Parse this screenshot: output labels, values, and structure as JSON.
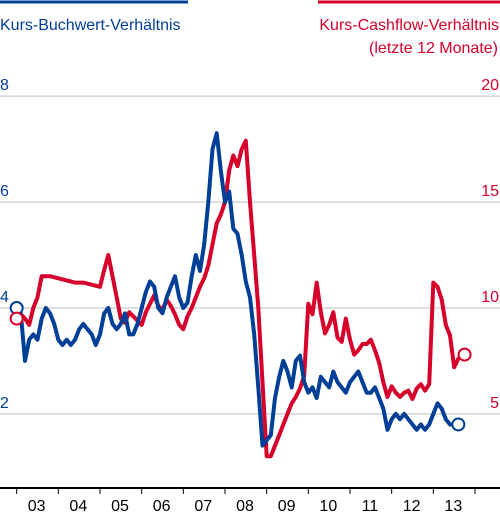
{
  "chart_data": {
    "type": "line",
    "legend": {
      "left_label": "Kurs-Buchwert-Verhältnis",
      "right_label_line1": "Kurs-Cashflow-Verhältnis",
      "right_label_line2": "(letzte 12 Monate)"
    },
    "colors": {
      "blue": "#003f98",
      "red": "#d6002a",
      "grid": "#bdbdbd",
      "axis": "#000000"
    },
    "x_ticks": [
      "03",
      "04",
      "05",
      "06",
      "07",
      "08",
      "09",
      "10",
      "11",
      "12",
      "13"
    ],
    "y_left_ticks": [
      "2",
      "4",
      "6",
      "8"
    ],
    "y_right_ticks": [
      "5",
      "10",
      "15",
      "20"
    ],
    "xlim": [
      2002.6,
      2014.6
    ],
    "y_left_lim": [
      0.6,
      8.4
    ],
    "y_right_lim": [
      1.5,
      21.0
    ],
    "series": [
      {
        "name": "Kurs-Buchwert-Verhältnis",
        "axis": "left",
        "color": "blue",
        "points": [
          [
            2003.0,
            4.0
          ],
          [
            2003.1,
            3.9
          ],
          [
            2003.2,
            3.0
          ],
          [
            2003.3,
            3.4
          ],
          [
            2003.4,
            3.5
          ],
          [
            2003.5,
            3.4
          ],
          [
            2003.6,
            3.8
          ],
          [
            2003.7,
            4.0
          ],
          [
            2003.8,
            3.9
          ],
          [
            2003.9,
            3.7
          ],
          [
            2004.0,
            3.4
          ],
          [
            2004.1,
            3.3
          ],
          [
            2004.2,
            3.4
          ],
          [
            2004.3,
            3.3
          ],
          [
            2004.4,
            3.4
          ],
          [
            2004.5,
            3.6
          ],
          [
            2004.6,
            3.7
          ],
          [
            2004.7,
            3.6
          ],
          [
            2004.8,
            3.5
          ],
          [
            2004.9,
            3.3
          ],
          [
            2005.0,
            3.5
          ],
          [
            2005.1,
            3.9
          ],
          [
            2005.2,
            4.0
          ],
          [
            2005.3,
            3.7
          ],
          [
            2005.4,
            3.6
          ],
          [
            2005.5,
            3.7
          ],
          [
            2005.6,
            3.9
          ],
          [
            2005.7,
            3.5
          ],
          [
            2005.8,
            3.5
          ],
          [
            2005.9,
            3.7
          ],
          [
            2006.0,
            4.0
          ],
          [
            2006.1,
            4.3
          ],
          [
            2006.2,
            4.5
          ],
          [
            2006.3,
            4.4
          ],
          [
            2006.4,
            4.0
          ],
          [
            2006.5,
            3.9
          ],
          [
            2006.6,
            4.2
          ],
          [
            2006.7,
            4.4
          ],
          [
            2006.8,
            4.6
          ],
          [
            2006.9,
            4.2
          ],
          [
            2007.0,
            4.0
          ],
          [
            2007.1,
            4.1
          ],
          [
            2007.2,
            4.6
          ],
          [
            2007.3,
            5.0
          ],
          [
            2007.4,
            4.7
          ],
          [
            2007.5,
            5.2
          ],
          [
            2007.6,
            6.0
          ],
          [
            2007.7,
            7.0
          ],
          [
            2007.8,
            7.3
          ],
          [
            2007.9,
            6.6
          ],
          [
            2008.0,
            6.0
          ],
          [
            2008.1,
            6.2
          ],
          [
            2008.2,
            5.5
          ],
          [
            2008.3,
            5.4
          ],
          [
            2008.4,
            5.0
          ],
          [
            2008.5,
            4.5
          ],
          [
            2008.6,
            4.2
          ],
          [
            2008.7,
            3.5
          ],
          [
            2008.8,
            2.5
          ],
          [
            2008.9,
            1.4
          ],
          [
            2009.0,
            1.5
          ],
          [
            2009.1,
            1.6
          ],
          [
            2009.2,
            2.3
          ],
          [
            2009.3,
            2.7
          ],
          [
            2009.4,
            3.0
          ],
          [
            2009.5,
            2.8
          ],
          [
            2009.6,
            2.5
          ],
          [
            2009.7,
            3.0
          ],
          [
            2009.8,
            3.1
          ],
          [
            2009.9,
            2.6
          ],
          [
            2010.0,
            2.4
          ],
          [
            2010.1,
            2.5
          ],
          [
            2010.2,
            2.3
          ],
          [
            2010.3,
            2.7
          ],
          [
            2010.4,
            2.6
          ],
          [
            2010.5,
            2.5
          ],
          [
            2010.6,
            2.8
          ],
          [
            2010.7,
            2.6
          ],
          [
            2010.8,
            2.5
          ],
          [
            2010.9,
            2.4
          ],
          [
            2011.0,
            2.6
          ],
          [
            2011.1,
            2.7
          ],
          [
            2011.2,
            2.8
          ],
          [
            2011.3,
            2.6
          ],
          [
            2011.4,
            2.4
          ],
          [
            2011.5,
            2.4
          ],
          [
            2011.6,
            2.5
          ],
          [
            2011.7,
            2.3
          ],
          [
            2011.8,
            2.1
          ],
          [
            2011.9,
            1.7
          ],
          [
            2012.0,
            1.9
          ],
          [
            2012.1,
            2.0
          ],
          [
            2012.2,
            1.9
          ],
          [
            2012.3,
            2.0
          ],
          [
            2012.4,
            1.9
          ],
          [
            2012.5,
            1.8
          ],
          [
            2012.6,
            1.7
          ],
          [
            2012.7,
            1.8
          ],
          [
            2012.8,
            1.7
          ],
          [
            2012.9,
            1.8
          ],
          [
            2013.0,
            2.0
          ],
          [
            2013.1,
            2.2
          ],
          [
            2013.2,
            2.1
          ],
          [
            2013.3,
            1.9
          ],
          [
            2013.4,
            1.8
          ],
          [
            2013.55,
            1.8
          ]
        ]
      },
      {
        "name": "Kurs-Cashflow-Verhältnis (letzte 12 Monate)",
        "axis": "right",
        "color": "red",
        "points": [
          [
            2003.0,
            9.5
          ],
          [
            2003.1,
            9.7
          ],
          [
            2003.2,
            9.5
          ],
          [
            2003.3,
            9.2
          ],
          [
            2003.4,
            10.0
          ],
          [
            2003.5,
            10.5
          ],
          [
            2003.6,
            11.5
          ],
          [
            2003.8,
            11.5
          ],
          [
            2004.0,
            11.4
          ],
          [
            2004.2,
            11.3
          ],
          [
            2004.4,
            11.2
          ],
          [
            2004.6,
            11.2
          ],
          [
            2004.8,
            11.1
          ],
          [
            2005.0,
            11.0
          ],
          [
            2005.1,
            11.8
          ],
          [
            2005.2,
            12.5
          ],
          [
            2005.3,
            11.5
          ],
          [
            2005.4,
            10.5
          ],
          [
            2005.5,
            9.5
          ],
          [
            2005.6,
            9.3
          ],
          [
            2005.7,
            9.8
          ],
          [
            2005.8,
            9.6
          ],
          [
            2005.9,
            9.4
          ],
          [
            2006.0,
            9.2
          ],
          [
            2006.1,
            9.8
          ],
          [
            2006.2,
            10.2
          ],
          [
            2006.3,
            10.6
          ],
          [
            2006.4,
            10.1
          ],
          [
            2006.5,
            9.9
          ],
          [
            2006.6,
            10.4
          ],
          [
            2006.7,
            10.1
          ],
          [
            2006.8,
            9.7
          ],
          [
            2006.9,
            9.2
          ],
          [
            2007.0,
            9.0
          ],
          [
            2007.1,
            9.6
          ],
          [
            2007.2,
            10.0
          ],
          [
            2007.3,
            10.5
          ],
          [
            2007.4,
            11.0
          ],
          [
            2007.5,
            11.4
          ],
          [
            2007.6,
            12.0
          ],
          [
            2007.7,
            13.0
          ],
          [
            2007.8,
            14.0
          ],
          [
            2007.9,
            14.4
          ],
          [
            2008.0,
            15.0
          ],
          [
            2008.1,
            16.5
          ],
          [
            2008.2,
            17.2
          ],
          [
            2008.3,
            16.7
          ],
          [
            2008.4,
            17.5
          ],
          [
            2008.5,
            17.9
          ],
          [
            2008.6,
            15.0
          ],
          [
            2008.7,
            12.5
          ],
          [
            2008.8,
            10.0
          ],
          [
            2008.9,
            6.5
          ],
          [
            2009.0,
            3.0
          ],
          [
            2009.1,
            3.0
          ],
          [
            2009.2,
            3.5
          ],
          [
            2009.3,
            4.0
          ],
          [
            2009.4,
            4.5
          ],
          [
            2009.5,
            5.0
          ],
          [
            2009.6,
            5.5
          ],
          [
            2009.7,
            5.8
          ],
          [
            2009.8,
            6.2
          ],
          [
            2009.9,
            6.8
          ],
          [
            2010.0,
            10.2
          ],
          [
            2010.1,
            9.7
          ],
          [
            2010.2,
            11.2
          ],
          [
            2010.3,
            9.8
          ],
          [
            2010.4,
            8.8
          ],
          [
            2010.5,
            9.2
          ],
          [
            2010.6,
            9.8
          ],
          [
            2010.7,
            8.6
          ],
          [
            2010.8,
            8.4
          ],
          [
            2010.9,
            9.5
          ],
          [
            2011.0,
            8.5
          ],
          [
            2011.1,
            7.8
          ],
          [
            2011.2,
            8.0
          ],
          [
            2011.3,
            8.3
          ],
          [
            2011.4,
            8.3
          ],
          [
            2011.5,
            8.5
          ],
          [
            2011.6,
            8.0
          ],
          [
            2011.7,
            7.4
          ],
          [
            2011.8,
            6.5
          ],
          [
            2011.9,
            5.8
          ],
          [
            2012.0,
            6.3
          ],
          [
            2012.1,
            6.0
          ],
          [
            2012.2,
            5.8
          ],
          [
            2012.3,
            6.0
          ],
          [
            2012.4,
            6.1
          ],
          [
            2012.5,
            5.7
          ],
          [
            2012.6,
            6.2
          ],
          [
            2012.7,
            6.4
          ],
          [
            2012.8,
            6.1
          ],
          [
            2012.9,
            6.4
          ],
          [
            2013.0,
            11.2
          ],
          [
            2013.1,
            11.0
          ],
          [
            2013.2,
            10.4
          ],
          [
            2013.3,
            9.2
          ],
          [
            2013.4,
            8.7
          ],
          [
            2013.5,
            7.2
          ],
          [
            2013.6,
            7.6
          ],
          [
            2013.7,
            7.8
          ]
        ]
      }
    ],
    "endpoints": [
      {
        "series": "blue",
        "x": 2003.0,
        "y": 4.0
      },
      {
        "series": "blue",
        "x": 2013.6,
        "y": 1.8
      },
      {
        "series": "red",
        "x": 2003.0,
        "y": 9.5
      },
      {
        "series": "red",
        "x": 2013.75,
        "y": 7.8
      }
    ]
  }
}
